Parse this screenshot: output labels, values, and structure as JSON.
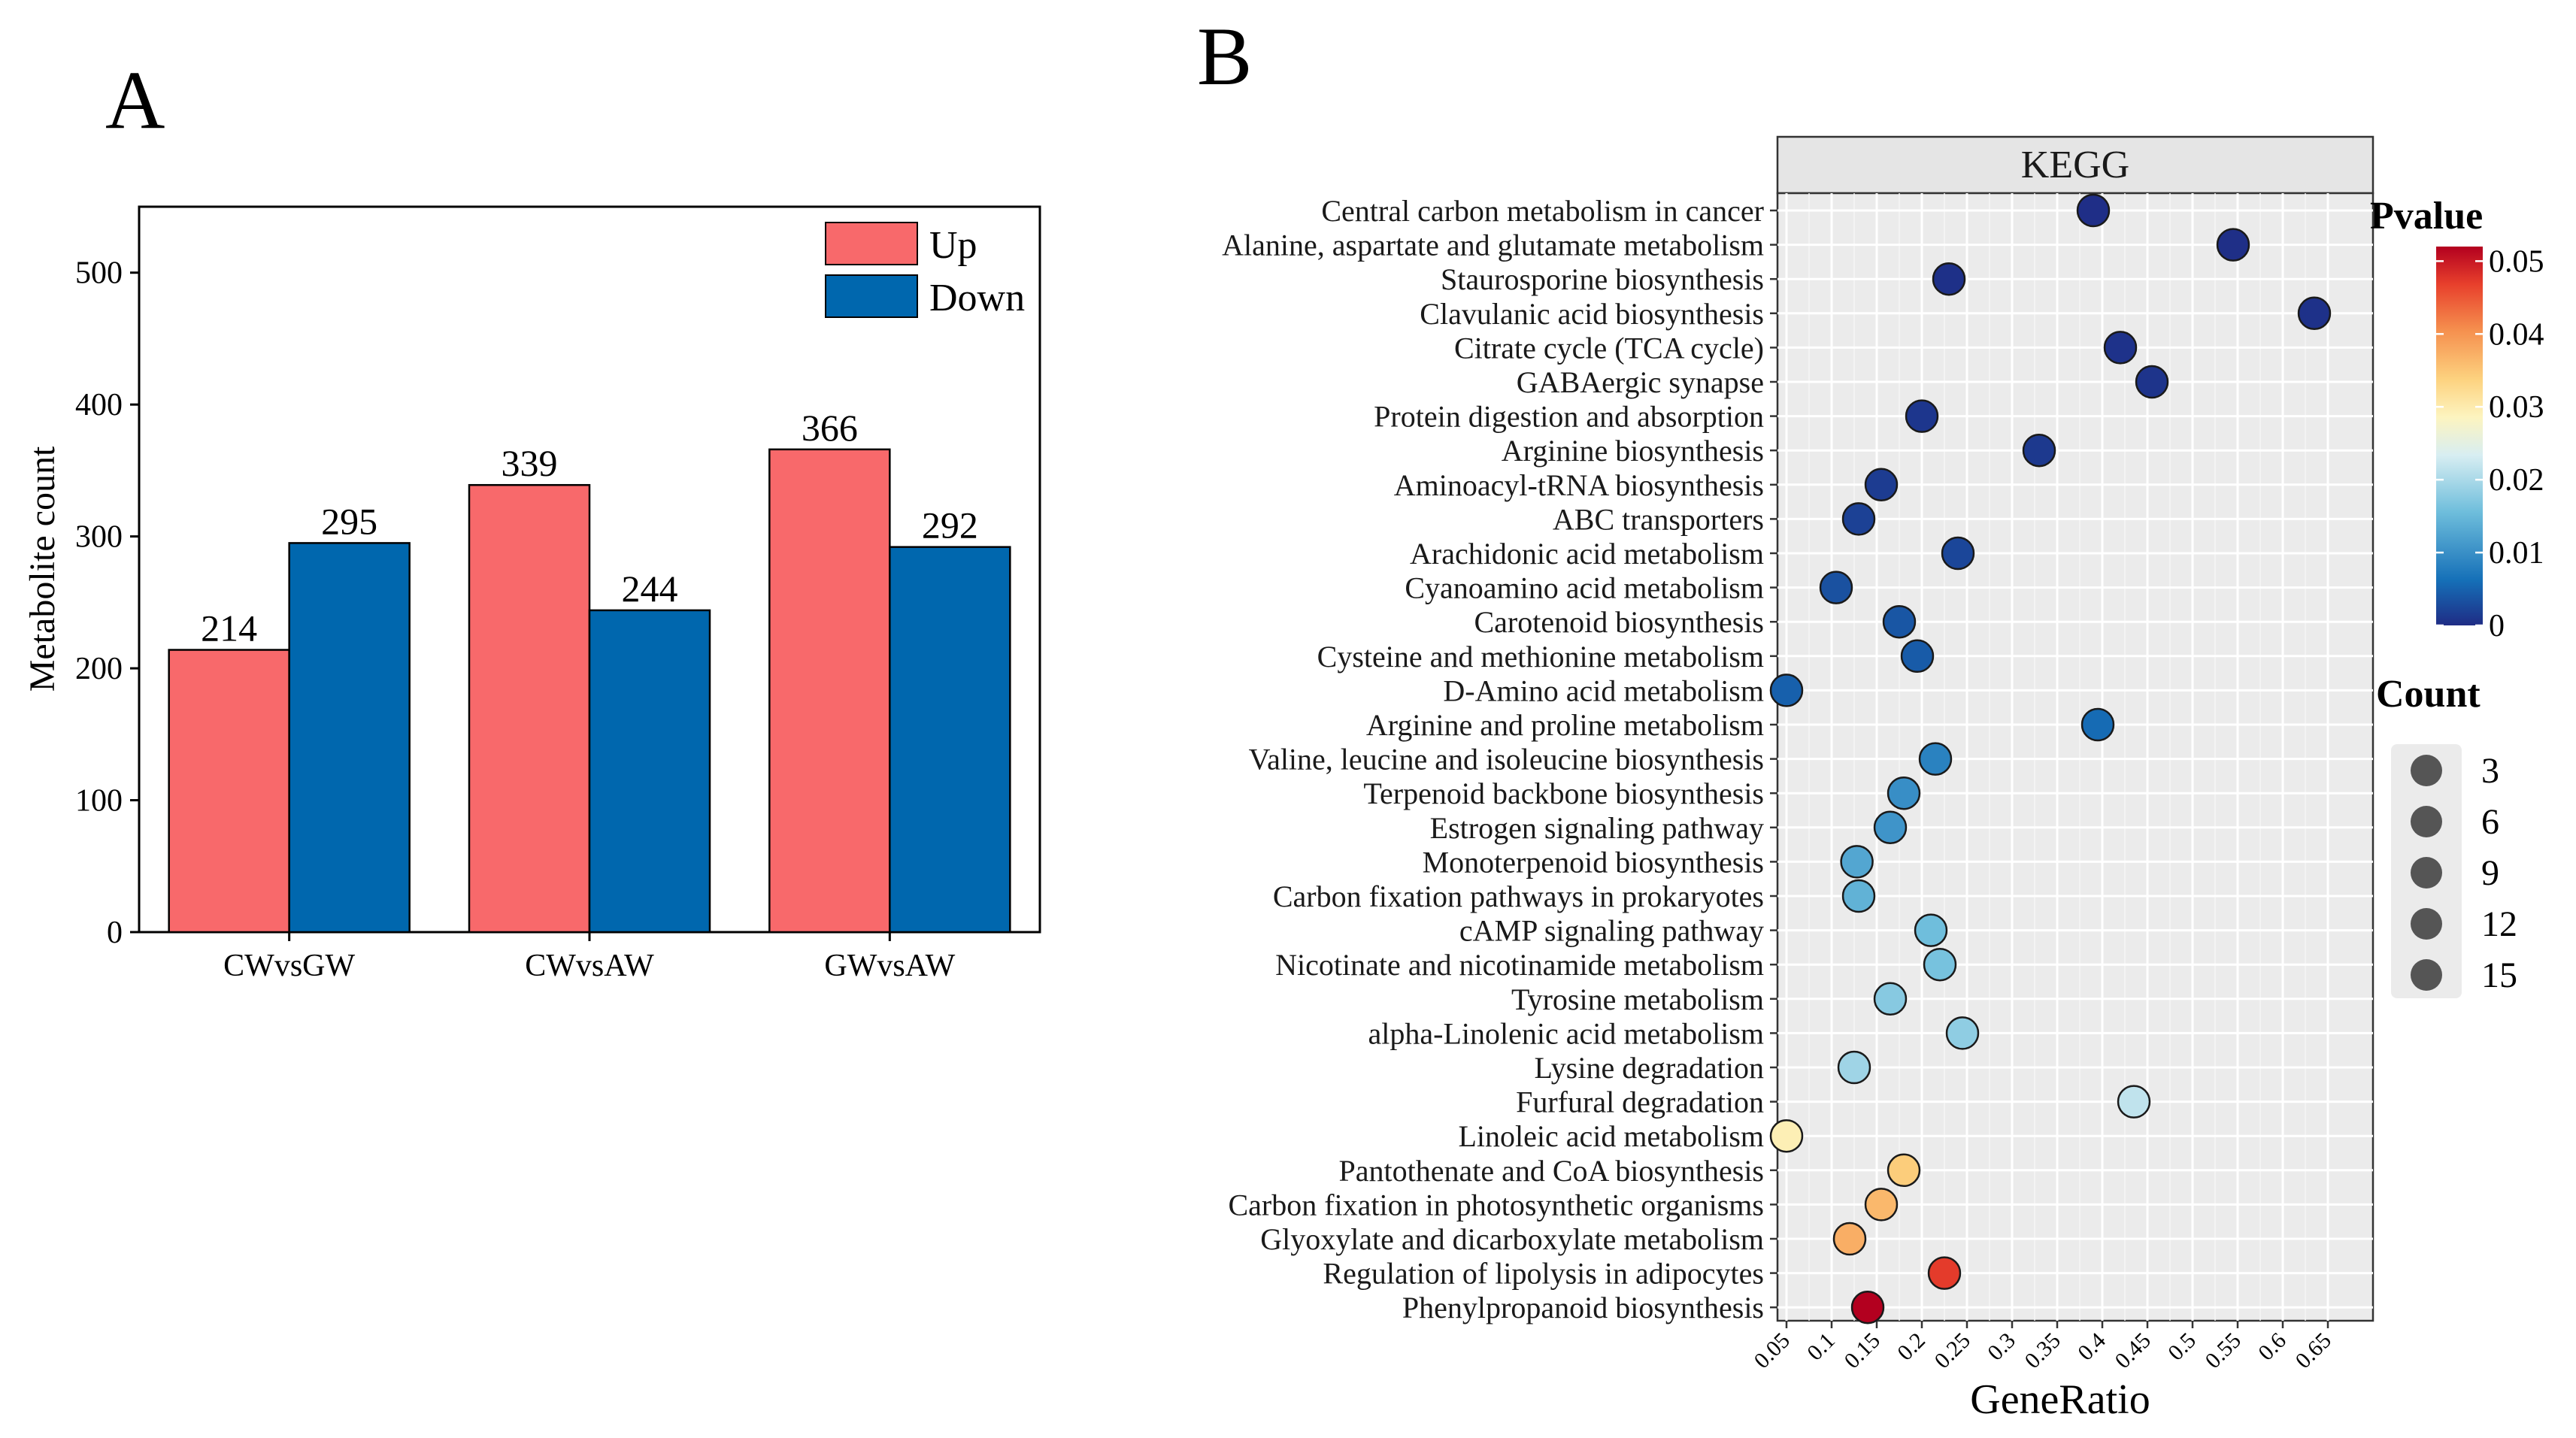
{
  "chart_data": [
    {
      "panel_label": "A",
      "type": "bar",
      "categories": [
        "CWvsGW",
        "CWvsAW",
        "GWvsAW"
      ],
      "series": [
        {
          "name": "Up",
          "values": [
            214,
            339,
            366
          ],
          "color": "#F8696B"
        },
        {
          "name": "Down",
          "values": [
            295,
            244,
            292
          ],
          "color": "#0067AE"
        }
      ],
      "ylabel": "Metabolite count",
      "xlabel": "",
      "ylim": [
        0,
        550
      ],
      "yticks": [
        0,
        100,
        200,
        300,
        400,
        500
      ],
      "legend_position": "top-right",
      "grid": false
    },
    {
      "panel_label": "B",
      "type": "scatter",
      "facet_title": "KEGG",
      "xlabel": "GeneRatio",
      "ylabel": "",
      "xlim": [
        0.04,
        0.7
      ],
      "xticks": [
        0.05,
        0.1,
        0.15,
        0.2,
        0.25,
        0.3,
        0.35,
        0.4,
        0.45,
        0.5,
        0.55,
        0.6,
        0.65
      ],
      "grid": true,
      "color_legend": {
        "title": "Pvalue",
        "ticks": [
          0,
          0.01,
          0.02,
          0.03,
          0.04,
          0.05
        ],
        "range": [
          0,
          0.052
        ],
        "palette": [
          "#1F2C85",
          "#1570B8",
          "#6FBEDC",
          "#D8EEF2",
          "#FDF4BF",
          "#FDD27F",
          "#F58F4E",
          "#E8402C",
          "#B3001F"
        ]
      },
      "size_legend": {
        "title": "Count",
        "values": [
          3,
          6,
          9,
          12,
          15
        ]
      },
      "points": [
        {
          "term": "Central carbon metabolism in cancer",
          "generatio": 0.39,
          "pvalue": 0.0002
        },
        {
          "term": "Alanine, aspartate and glutamate metabolism",
          "generatio": 0.545,
          "pvalue": 0.0003
        },
        {
          "term": "Staurosporine biosynthesis",
          "generatio": 0.23,
          "pvalue": 0.0004
        },
        {
          "term": "Clavulanic acid biosynthesis",
          "generatio": 0.635,
          "pvalue": 0.0005
        },
        {
          "term": "Citrate cycle (TCA cycle)",
          "generatio": 0.42,
          "pvalue": 0.0006
        },
        {
          "term": "GABAergic synapse",
          "generatio": 0.455,
          "pvalue": 0.0008
        },
        {
          "term": "Protein digestion and absorption",
          "generatio": 0.2,
          "pvalue": 0.001
        },
        {
          "term": "Arginine biosynthesis",
          "generatio": 0.33,
          "pvalue": 0.0012
        },
        {
          "term": "Aminoacyl-tRNA biosynthesis",
          "generatio": 0.155,
          "pvalue": 0.0015
        },
        {
          "term": "ABC transporters",
          "generatio": 0.13,
          "pvalue": 0.002
        },
        {
          "term": "Arachidonic acid metabolism",
          "generatio": 0.24,
          "pvalue": 0.0025
        },
        {
          "term": "Cyanoamino acid metabolism",
          "generatio": 0.105,
          "pvalue": 0.0035
        },
        {
          "term": "Carotenoid biosynthesis",
          "generatio": 0.175,
          "pvalue": 0.004
        },
        {
          "term": "Cysteine and methionine metabolism",
          "generatio": 0.195,
          "pvalue": 0.0045
        },
        {
          "term": "D-Amino acid metabolism",
          "generatio": 0.05,
          "pvalue": 0.005
        },
        {
          "term": "Arginine and proline metabolism",
          "generatio": 0.395,
          "pvalue": 0.006
        },
        {
          "term": "Valine, leucine and isoleucine biosynthesis",
          "generatio": 0.215,
          "pvalue": 0.008
        },
        {
          "term": "Terpenoid backbone biosynthesis",
          "generatio": 0.18,
          "pvalue": 0.009
        },
        {
          "term": "Estrogen signaling pathway",
          "generatio": 0.165,
          "pvalue": 0.0095
        },
        {
          "term": "Monoterpenoid biosynthesis",
          "generatio": 0.128,
          "pvalue": 0.011
        },
        {
          "term": "Carbon fixation pathways in prokaryotes",
          "generatio": 0.13,
          "pvalue": 0.012
        },
        {
          "term": "cAMP signaling pathway",
          "generatio": 0.21,
          "pvalue": 0.013
        },
        {
          "term": "Nicotinate and nicotinamide metabolism",
          "generatio": 0.22,
          "pvalue": 0.0135
        },
        {
          "term": "Tyrosine metabolism",
          "generatio": 0.165,
          "pvalue": 0.0145
        },
        {
          "term": "alpha-Linolenic acid metabolism",
          "generatio": 0.245,
          "pvalue": 0.015
        },
        {
          "term": "Lysine degradation",
          "generatio": 0.125,
          "pvalue": 0.016
        },
        {
          "term": "Furfural degradation",
          "generatio": 0.435,
          "pvalue": 0.018
        },
        {
          "term": "Linoleic acid metabolism",
          "generatio": 0.05,
          "pvalue": 0.027
        },
        {
          "term": "Pantothenate and CoA biosynthesis",
          "generatio": 0.18,
          "pvalue": 0.033
        },
        {
          "term": "Carbon fixation in photosynthetic organisms",
          "generatio": 0.155,
          "pvalue": 0.035
        },
        {
          "term": "Glyoxylate and dicarboxylate metabolism",
          "generatio": 0.12,
          "pvalue": 0.036
        },
        {
          "term": "Regulation of lipolysis in adipocytes",
          "generatio": 0.225,
          "pvalue": 0.046
        },
        {
          "term": "Phenylpropanoid biosynthesis",
          "generatio": 0.14,
          "pvalue": 0.052
        }
      ]
    }
  ]
}
